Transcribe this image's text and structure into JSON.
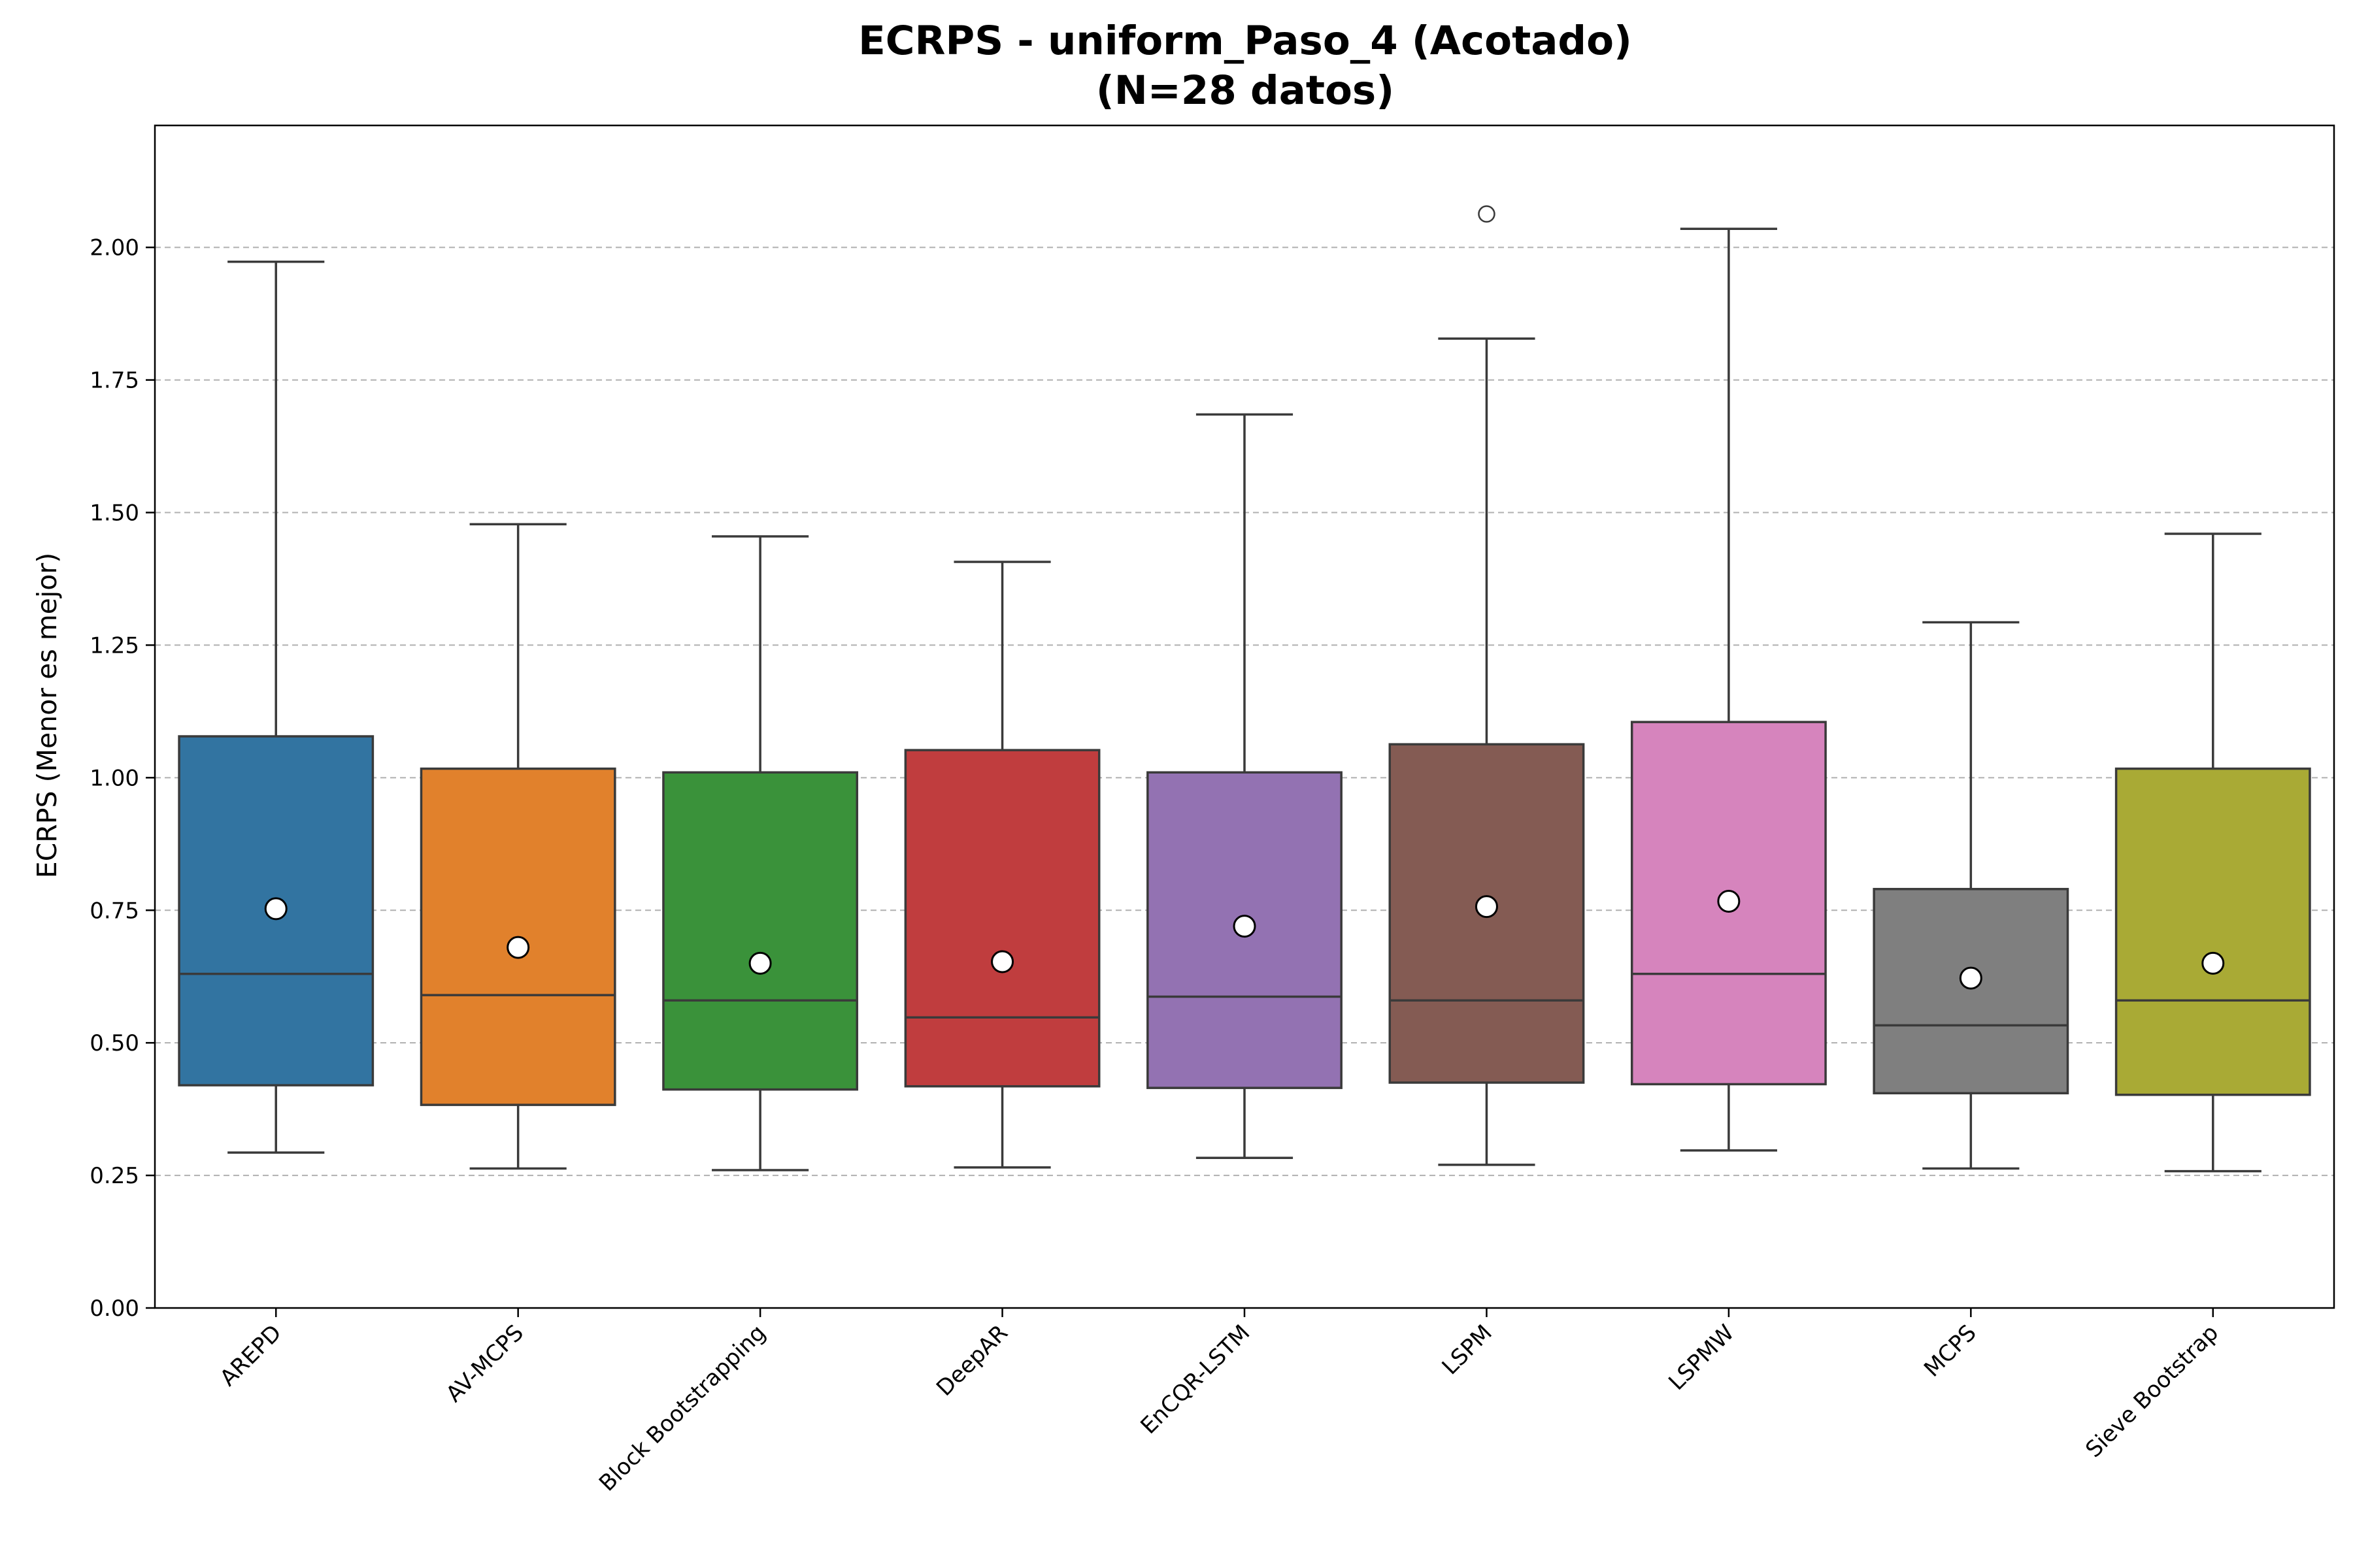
{
  "chart_data": {
    "type": "box",
    "title": "ECRPS - uniform_Paso_4 (Acotado)",
    "subtitle": "(N=28 datos)",
    "xlabel": "",
    "ylabel": "ECRPS (Menor es mejor)",
    "ylim": [
      0,
      2.23
    ],
    "yticks": [
      "0.00",
      "0.25",
      "0.50",
      "0.75",
      "1.00",
      "1.25",
      "1.50",
      "1.75",
      "2.00"
    ],
    "grid": "y dashed",
    "categories": [
      "AREPD",
      "AV-MCPS",
      "Block Bootstrapping",
      "DeepAR",
      "EnCQR-LSTM",
      "LSPM",
      "LSPMW",
      "MCPS",
      "Sieve Bootstrap"
    ],
    "series": [
      {
        "category": "AREPD",
        "whisker_low": 0.293,
        "q1": 0.42,
        "median": 0.63,
        "q3": 1.078,
        "whisker_high": 1.973,
        "mean": 0.753,
        "outliers": [],
        "color": "#3274a1"
      },
      {
        "category": "AV-MCPS",
        "whisker_low": 0.263,
        "q1": 0.383,
        "median": 0.59,
        "q3": 1.017,
        "whisker_high": 1.478,
        "mean": 0.68,
        "outliers": [],
        "color": "#e1812c"
      },
      {
        "category": "Block Bootstrapping",
        "whisker_low": 0.26,
        "q1": 0.412,
        "median": 0.58,
        "q3": 1.01,
        "whisker_high": 1.455,
        "mean": 0.65,
        "outliers": [],
        "color": "#3a923a"
      },
      {
        "category": "DeepAR",
        "whisker_low": 0.265,
        "q1": 0.418,
        "median": 0.548,
        "q3": 1.052,
        "whisker_high": 1.407,
        "mean": 0.653,
        "outliers": [],
        "color": "#c03d3e"
      },
      {
        "category": "EnCQR-LSTM",
        "whisker_low": 0.283,
        "q1": 0.415,
        "median": 0.587,
        "q3": 1.01,
        "whisker_high": 1.685,
        "mean": 0.72,
        "outliers": [],
        "color": "#9372b2"
      },
      {
        "category": "LSPM",
        "whisker_low": 0.27,
        "q1": 0.425,
        "median": 0.58,
        "q3": 1.063,
        "whisker_high": 1.828,
        "mean": 0.757,
        "outliers": [
          2.063
        ],
        "color": "#845b53"
      },
      {
        "category": "LSPMW",
        "whisker_low": 0.297,
        "q1": 0.422,
        "median": 0.63,
        "q3": 1.105,
        "whisker_high": 2.035,
        "mean": 0.767,
        "outliers": [],
        "color": "#d684bd"
      },
      {
        "category": "MCPS",
        "whisker_low": 0.263,
        "q1": 0.405,
        "median": 0.533,
        "q3": 0.79,
        "whisker_high": 1.293,
        "mean": 0.622,
        "outliers": [],
        "color": "#7f7f7f"
      },
      {
        "category": "Sieve Bootstrap",
        "whisker_low": 0.258,
        "q1": 0.402,
        "median": 0.58,
        "q3": 1.017,
        "whisker_high": 1.46,
        "mean": 0.65,
        "outliers": [],
        "color": "#a9aa35"
      }
    ]
  }
}
